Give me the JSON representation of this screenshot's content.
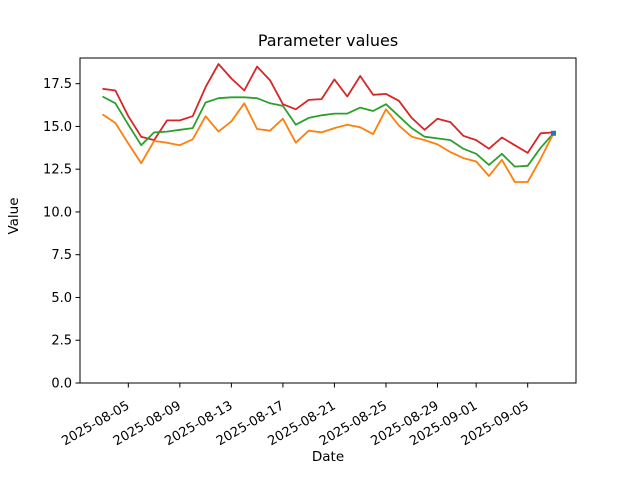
{
  "figure": {
    "title": "Parameter values",
    "xlabel": "Date",
    "ylabel": "Value"
  },
  "chart_data": {
    "type": "line",
    "title": "Parameter values",
    "xlabel": "Date",
    "ylabel": "Value",
    "grid": false,
    "legend": "none",
    "background": "#ffffff",
    "axes_color": "#000000",
    "ylim": [
      0,
      19
    ],
    "yticks": [
      0,
      2.5,
      5,
      7.5,
      10,
      12.5,
      15,
      17.5
    ],
    "ytick_labels": [
      "0.0",
      "2.5",
      "5.0",
      "7.5",
      "10.0",
      "12.5",
      "15.0",
      "17.5"
    ],
    "xtick_labels": [
      "2025-08-05",
      "2025-08-09",
      "2025-08-13",
      "2025-08-17",
      "2025-08-21",
      "2025-08-25",
      "2025-08-29",
      "2025-09-01",
      "2025-09-05"
    ],
    "xtick_rotation": 30,
    "x": [
      "2025-08-03",
      "2025-08-04",
      "2025-08-05",
      "2025-08-06",
      "2025-08-07",
      "2025-08-08",
      "2025-08-09",
      "2025-08-10",
      "2025-08-11",
      "2025-08-12",
      "2025-08-13",
      "2025-08-14",
      "2025-08-15",
      "2025-08-16",
      "2025-08-17",
      "2025-08-18",
      "2025-08-19",
      "2025-08-20",
      "2025-08-21",
      "2025-08-22",
      "2025-08-23",
      "2025-08-24",
      "2025-08-25",
      "2025-08-26",
      "2025-08-27",
      "2025-08-28",
      "2025-08-29",
      "2025-08-30",
      "2025-08-31",
      "2025-09-01",
      "2025-09-02",
      "2025-09-03",
      "2025-09-04",
      "2025-09-05",
      "2025-09-06",
      "2025-09-07"
    ],
    "series": [
      {
        "name": "red",
        "color": "#d62728",
        "values": [
          17.2,
          17.1,
          15.6,
          14.4,
          14.2,
          15.35,
          15.35,
          15.6,
          17.3,
          18.65,
          17.8,
          17.1,
          18.5,
          17.7,
          16.3,
          16.0,
          16.55,
          16.6,
          17.75,
          16.75,
          17.95,
          16.85,
          16.9,
          16.5,
          15.5,
          14.8,
          15.45,
          15.25,
          14.45,
          14.2,
          13.7,
          14.35,
          13.9,
          13.45,
          14.6,
          14.65
        ]
      },
      {
        "name": "green",
        "color": "#2ca02c",
        "values": [
          16.75,
          16.35,
          15.1,
          13.9,
          14.65,
          14.7,
          14.8,
          14.9,
          16.4,
          16.65,
          16.7,
          16.7,
          16.65,
          16.35,
          16.2,
          15.1,
          15.5,
          15.65,
          15.75,
          15.75,
          16.1,
          15.9,
          16.3,
          15.6,
          14.9,
          14.4,
          14.3,
          14.2,
          13.7,
          13.4,
          12.75,
          13.4,
          12.65,
          12.7,
          13.75,
          14.6
        ]
      },
      {
        "name": "orange",
        "color": "#ff7f0e",
        "values": [
          15.7,
          15.2,
          14.0,
          12.85,
          14.15,
          14.05,
          13.9,
          14.25,
          15.6,
          14.7,
          15.3,
          16.35,
          14.85,
          14.75,
          15.45,
          14.05,
          14.75,
          14.65,
          14.9,
          15.1,
          14.95,
          14.55,
          16.0,
          15.05,
          14.4,
          14.2,
          13.95,
          13.5,
          13.15,
          12.95,
          12.1,
          13.05,
          11.75,
          11.75,
          13.1,
          14.6
        ]
      }
    ],
    "end_marker": {
      "x": "2025-09-07",
      "y": 14.6,
      "color": "#1f77b4",
      "shape": "square"
    }
  }
}
